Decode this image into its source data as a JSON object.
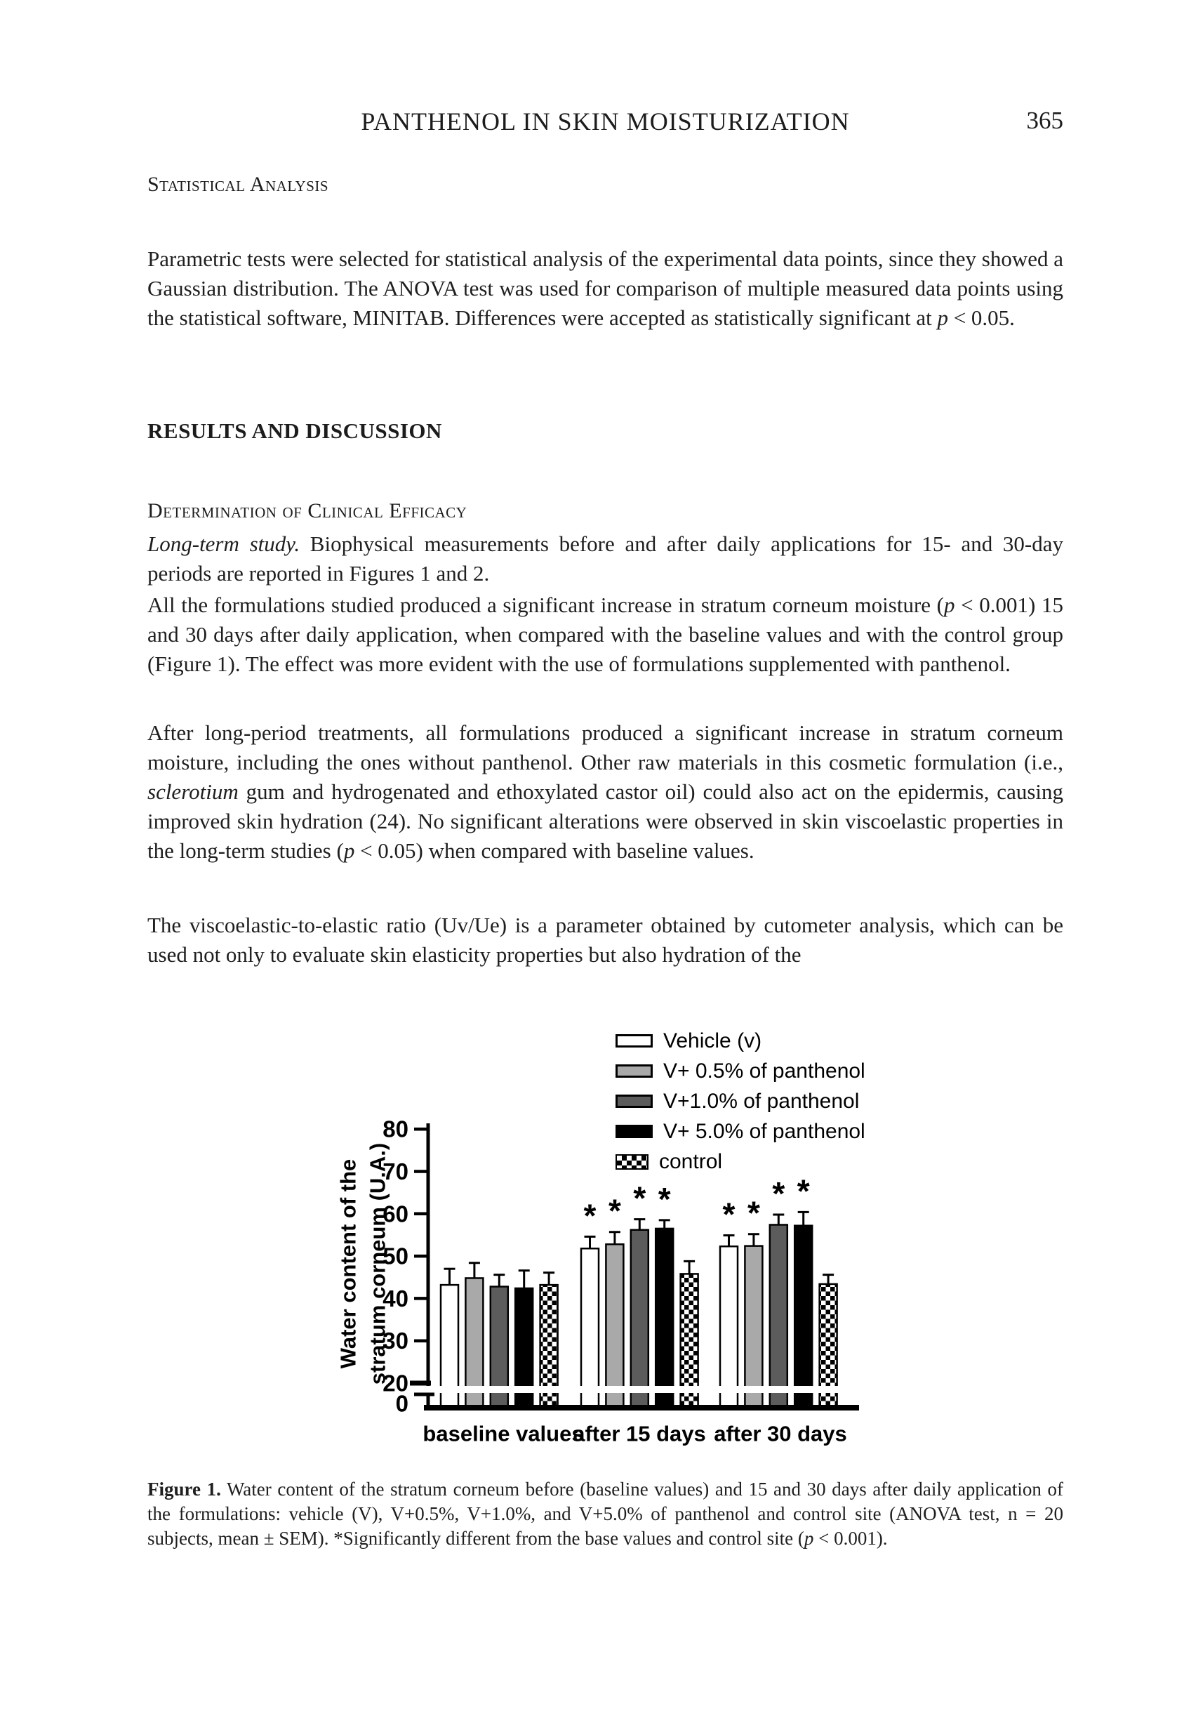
{
  "page": {
    "running_head": "PANTHENOL IN SKIN MOISTURIZATION",
    "page_number": "365"
  },
  "headings": {
    "statistical_analysis": "Statistical Analysis",
    "results": "RESULTS AND DISCUSSION",
    "determination": "Determination of Clinical Efficacy"
  },
  "paragraphs": {
    "statistical": [
      {
        "style": "normal",
        "text": "Parametric tests were selected for statistical analysis of the experimental data points, since they showed a Gaussian distribution. The ANOVA test was used for comparison of multiple measured data points using the statistical software, MINITAB. Differences were accepted as statistically significant at "
      },
      {
        "style": "italic",
        "text": "p"
      },
      {
        "style": "normal",
        "text": " < 0.05."
      }
    ],
    "longterm": [
      {
        "style": "italic",
        "text": "Long-term study."
      },
      {
        "style": "normal",
        "text": " Biophysical measurements before and after daily applications for 15- and 30-day periods are reported in Figures 1 and 2."
      }
    ],
    "allform": [
      {
        "style": "normal",
        "text": "All the formulations studied produced a significant increase in stratum corneum moisture ("
      },
      {
        "style": "italic",
        "text": "p"
      },
      {
        "style": "normal",
        "text": " < 0.001) 15 and 30 days after daily application, when compared with the baseline values and with the control group (Figure 1). The effect was more evident with the use of formulations supplemented with panthenol."
      }
    ],
    "afterlong": [
      {
        "style": "normal",
        "text": "After long-period treatments, all formulations produced a significant increase in stratum corneum moisture, including the ones without panthenol. Other raw materials in this cosmetic formulation (i.e., "
      },
      {
        "style": "italic",
        "text": "sclerotium"
      },
      {
        "style": "normal",
        "text": " gum and hydrogenated and ethoxylated castor oil) could also act on the epidermis, causing improved skin hydration (24). No significant alterations were observed in skin viscoelastic properties in the long-term studies ("
      },
      {
        "style": "italic",
        "text": "p"
      },
      {
        "style": "normal",
        "text": " < 0.05) when compared with baseline values."
      }
    ],
    "viscoelastic": [
      {
        "style": "normal",
        "text": "The viscoelastic-to-elastic ratio (Uv/Ue) is a parameter obtained by cutometer analysis, which can be used not only to evaluate skin elasticity properties but also hydration of the"
      }
    ]
  },
  "figure_caption": [
    {
      "style": "bold",
      "text": "Figure 1."
    },
    {
      "style": "normal",
      "text": "  Water content of the stratum corneum before (baseline values) and 15 and 30 days after daily application of the formulations: vehicle (V), V+0.5%, V+1.0%, and V+5.0% of panthenol and control site (ANOVA test, n = 20 subjects, mean ± SEM). *Significantly different from the base values and control site ("
    },
    {
      "style": "italic",
      "text": "p"
    },
    {
      "style": "normal",
      "text": " < 0.001)."
    }
  ],
  "chart_data": {
    "type": "bar",
    "ylabel_lines": [
      "Water content of the",
      "stratum corneum (U.A.)"
    ],
    "yticks": [
      0,
      20,
      30,
      40,
      50,
      60,
      70,
      80
    ],
    "ylim": [
      0,
      80
    ],
    "axis_break_between": [
      0,
      20
    ],
    "grid": false,
    "legend_position": "top-right",
    "categories": [
      "baseline values",
      "after 15 days",
      "after 30 days"
    ],
    "series": [
      {
        "name": "Vehicle (v)",
        "swatch": "white",
        "values": [
          43.2,
          51.8,
          52.3
        ],
        "errors": [
          3.8,
          2.8,
          2.6
        ],
        "significant": [
          false,
          true,
          true
        ]
      },
      {
        "name": "V+ 0.5% of panthenol",
        "swatch": "lightgray",
        "values": [
          44.8,
          52.8,
          52.4
        ],
        "errors": [
          3.6,
          2.9,
          2.8
        ],
        "significant": [
          false,
          true,
          true
        ]
      },
      {
        "name": "V+1.0% of panthenol",
        "swatch": "darkgray",
        "values": [
          42.8,
          56.2,
          57.4
        ],
        "errors": [
          2.8,
          2.5,
          2.4
        ],
        "significant": [
          false,
          true,
          true
        ]
      },
      {
        "name": "V+ 5.0% of panthenol",
        "swatch": "black",
        "values": [
          42.4,
          56.5,
          57.2
        ],
        "errors": [
          4.2,
          2.0,
          3.2
        ],
        "significant": [
          false,
          true,
          true
        ]
      },
      {
        "name": "control",
        "swatch": "checker",
        "values": [
          43.2,
          45.8,
          43.4
        ],
        "errors": [
          2.9,
          3.0,
          2.2
        ],
        "significant": [
          false,
          false,
          false
        ]
      }
    ],
    "significance_marker": "*",
    "colors": {
      "white": "#ffffff",
      "lightgray": "#a9a9a9",
      "darkgray": "#5c5c5c",
      "black": "#000000",
      "axis": "#000000"
    }
  }
}
